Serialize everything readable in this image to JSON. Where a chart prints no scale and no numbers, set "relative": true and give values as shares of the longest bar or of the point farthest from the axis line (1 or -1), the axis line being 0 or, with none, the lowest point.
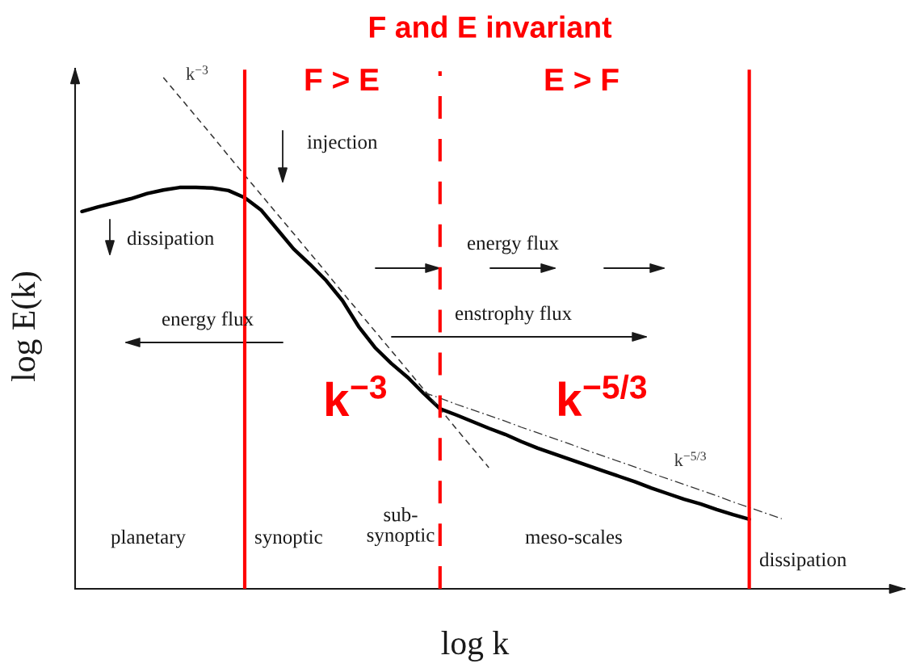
{
  "chart_data": {
    "type": "line",
    "title": "F and E invariant",
    "xlabel": "log k",
    "ylabel": "log E(k)",
    "relative": true,
    "categories": [
      null,
      null,
      null,
      null,
      null,
      null,
      null,
      null,
      null,
      null,
      null,
      null,
      null,
      null,
      null,
      null,
      null,
      null,
      null,
      null,
      null,
      null,
      null,
      null,
      null,
      null,
      null,
      null,
      null,
      null,
      null,
      null,
      null,
      null,
      null,
      null,
      null,
      null,
      null,
      null,
      null,
      null,
      null,
      null
    ],
    "series": [
      {
        "color": "#000000",
        "line_style": "solid",
        "values": [
          0.738,
          0.747,
          0.755,
          0.763,
          0.773,
          0.78,
          0.785,
          0.785,
          0.784,
          0.779,
          0.765,
          0.741,
          0.703,
          0.665,
          0.635,
          0.603,
          0.564,
          0.513,
          0.472,
          0.441,
          0.414,
          0.382,
          0.352,
          0.34,
          0.327,
          0.314,
          0.302,
          0.288,
          0.275,
          0.264,
          0.253,
          0.242,
          0.231,
          0.22,
          0.209,
          0.197,
          0.186,
          0.175,
          0.166,
          0.155,
          0.145,
          0.136,
          null,
          null
        ]
      },
      {
        "name": "k$^{−3}$",
        "color": "#333333",
        "line_style": "dashed",
        "values": [
          null,
          null,
          null,
          null,
          null,
          1.0,
          0.962,
          0.924,
          0.886,
          0.847,
          0.809,
          0.771,
          0.733,
          0.695,
          0.657,
          0.619,
          0.58,
          0.542,
          0.504,
          0.466,
          0.428,
          0.39,
          0.352,
          0.313,
          0.275,
          0.237,
          null,
          null,
          null,
          null,
          null,
          null,
          null,
          null,
          null,
          null,
          null,
          null,
          null,
          null,
          null,
          null,
          null,
          null
        ]
      },
      {
        "name": "k$^{−5/3}$",
        "color": "#333333",
        "line_style": "dashdot",
        "values": [
          null,
          null,
          null,
          null,
          null,
          null,
          null,
          null,
          null,
          null,
          null,
          null,
          null,
          null,
          null,
          null,
          null,
          null,
          null,
          null,
          null,
          0.384,
          0.373,
          0.361,
          0.35,
          0.339,
          0.328,
          0.316,
          0.305,
          0.294,
          0.283,
          0.271,
          0.26,
          0.249,
          0.238,
          0.226,
          0.215,
          0.204,
          0.193,
          0.182,
          0.17,
          0.159,
          0.148,
          0.137
        ]
      }
    ],
    "annotations": [
      "F > E",
      "E > F",
      "k$^{−3}$",
      "k$^{−5/3}$",
      "injection",
      "dissipation",
      "energy flux",
      "energy flux",
      "enstrophy flux",
      "planetary",
      "synoptic",
      "sub-\nsynoptic",
      "meso-scales",
      "dissipation"
    ]
  }
}
